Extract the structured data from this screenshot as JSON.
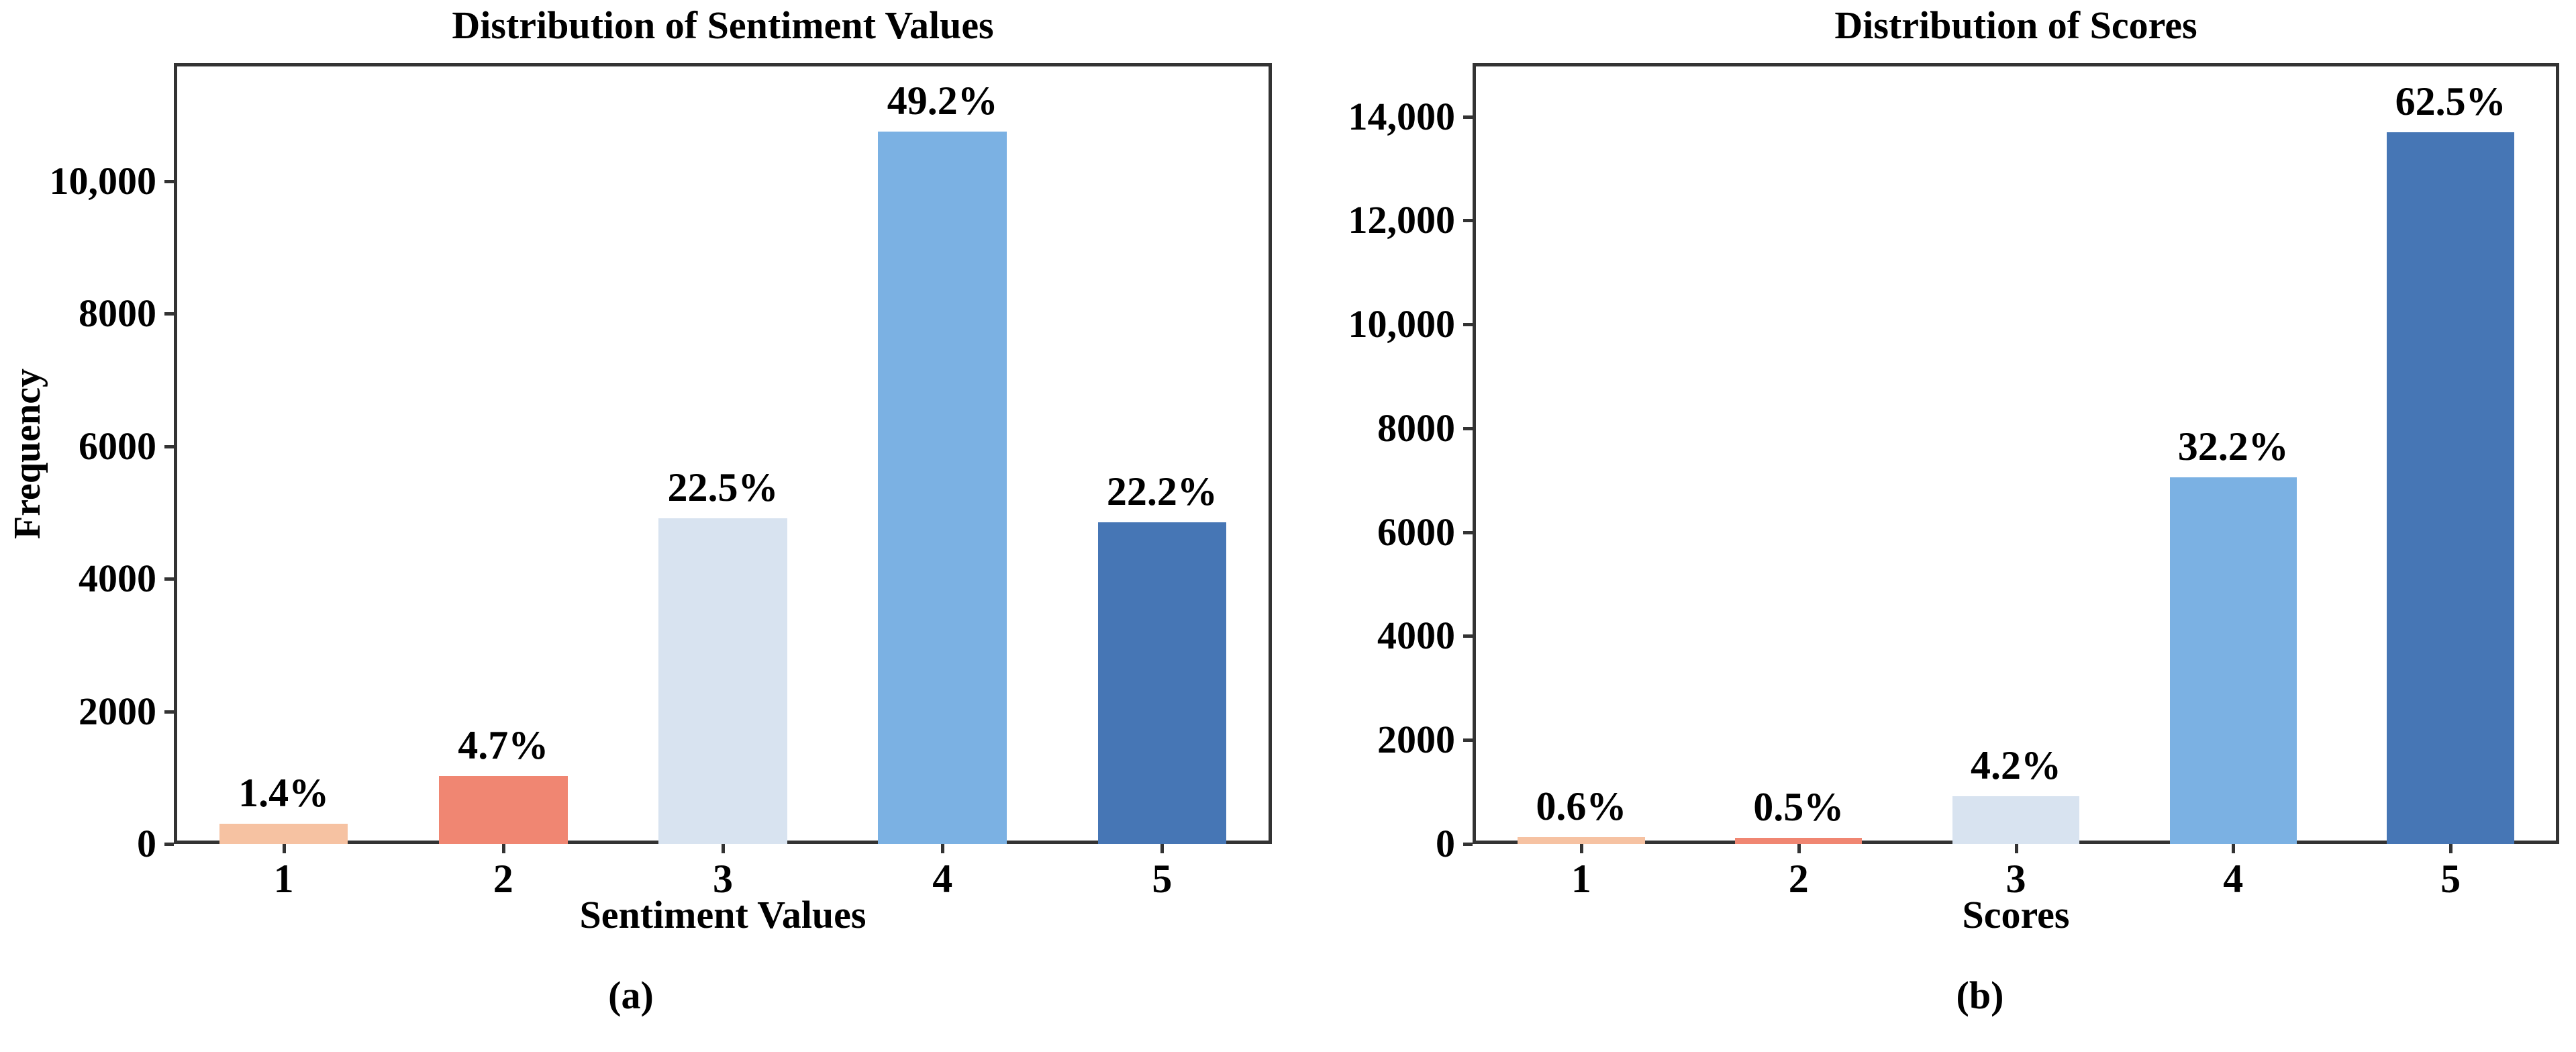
{
  "figure": {
    "background": "#ffffff",
    "axis_color": "#333333",
    "text_color": "#000000"
  },
  "chart_data": [
    {
      "id": "a",
      "type": "bar",
      "title": "Distribution of Sentiment Values",
      "xlabel": "Sentiment Values",
      "ylabel": "Frequency",
      "caption": "(a)",
      "categories": [
        "1",
        "2",
        "3",
        "4",
        "5"
      ],
      "values": [
        306,
        1027,
        4916,
        10750,
        4851
      ],
      "percent_labels": [
        "1.4%",
        "4.7%",
        "22.5%",
        "49.2%",
        "22.2%"
      ],
      "bar_colors": [
        "#f6c2a2",
        "#f08672",
        "#d8e3f0",
        "#7bb1e3",
        "#4676b5"
      ],
      "ylim": [
        0,
        11780
      ],
      "yticks": [
        0,
        2000,
        4000,
        6000,
        8000,
        10000
      ],
      "ytick_labels": [
        "0",
        "2000",
        "4000",
        "6000",
        "8000",
        "10,000"
      ],
      "grid": false,
      "legend": "none",
      "bar_width_frac": 0.585
    },
    {
      "id": "b",
      "type": "bar",
      "title": "Distribution of Scores",
      "xlabel": "Scores",
      "ylabel": "",
      "caption": "(b)",
      "categories": [
        "1",
        "2",
        "3",
        "4",
        "5"
      ],
      "values": [
        132,
        110,
        921,
        7058,
        13700
      ],
      "percent_labels": [
        "0.6%",
        "0.5%",
        "4.2%",
        "32.2%",
        "62.5%"
      ],
      "bar_colors": [
        "#f6c2a2",
        "#f08672",
        "#d8e3f0",
        "#7bb1e3",
        "#4676b5"
      ],
      "ylim": [
        0,
        15030
      ],
      "yticks": [
        0,
        2000,
        4000,
        6000,
        8000,
        10000,
        12000,
        14000
      ],
      "ytick_labels": [
        "0",
        "2000",
        "4000",
        "6000",
        "8000",
        "10,000",
        "12,000",
        "14,000"
      ],
      "grid": false,
      "legend": "none",
      "bar_width_frac": 0.585
    }
  ]
}
